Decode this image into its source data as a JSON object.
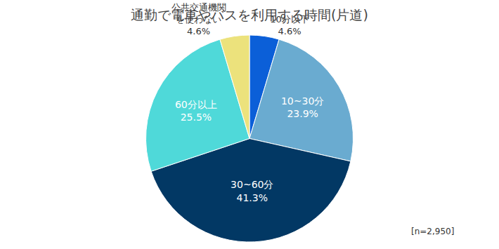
{
  "chart_data": {
    "type": "pie",
    "title": "通勤で電車やバスを利用する時間(片道)",
    "categories": [
      "10分以下",
      "10~30分",
      "30~60分",
      "60分以上",
      "公共交通機関を使わない"
    ],
    "values": [
      4.6,
      23.9,
      41.3,
      25.5,
      4.6
    ],
    "value_labels": [
      "4.6%",
      "23.9%",
      "41.3%",
      "25.5%",
      "4.6%"
    ],
    "colors": [
      "#0b5fd8",
      "#6aabd0",
      "#023864",
      "#4fd9d9",
      "#ece27c"
    ],
    "data_labels": true,
    "annotations": [
      "[n=2,950]"
    ]
  }
}
